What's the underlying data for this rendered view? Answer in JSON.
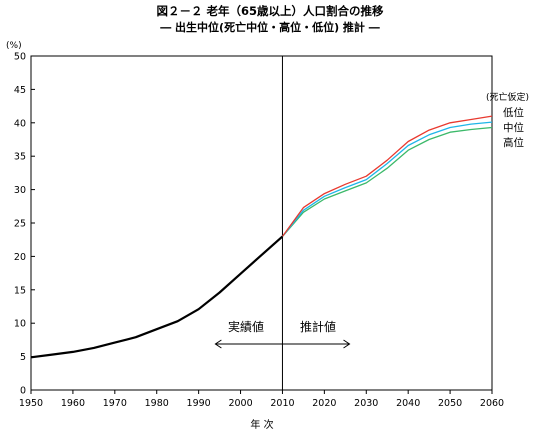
{
  "chart_data": {
    "type": "line",
    "title": "図２－２ 老年（65歳以上）人口割合の推移",
    "subtitle": "― 出生中位(死亡中位・高位・低位) 推計 ―",
    "xlabel": "年 次",
    "y_unit_label": "(%)",
    "xlim": [
      1950,
      2060
    ],
    "ylim": [
      0,
      50
    ],
    "x_ticks": [
      1950,
      1960,
      1970,
      1980,
      1990,
      2000,
      2010,
      2020,
      2030,
      2040,
      2050,
      2060
    ],
    "y_ticks": [
      0,
      5,
      10,
      15,
      20,
      25,
      30,
      35,
      40,
      45,
      50
    ],
    "grid": false,
    "divider_year": 2010,
    "annotations": {
      "actual_label": "実績値",
      "projected_label": "推計値",
      "arrow_range": [
        1994,
        2026
      ]
    },
    "legend": {
      "header": "(死亡仮定)",
      "placement": "right",
      "labels": [
        "低位",
        "中位",
        "高位"
      ]
    },
    "series": [
      {
        "key": "actual",
        "color": "#000000",
        "x": [
          1950,
          1955,
          1960,
          1965,
          1970,
          1975,
          1980,
          1985,
          1990,
          1995,
          2000,
          2005,
          2010
        ],
        "values": [
          4.9,
          5.3,
          5.7,
          6.3,
          7.1,
          7.9,
          9.1,
          10.3,
          12.1,
          14.6,
          17.4,
          20.2,
          23.0
        ]
      },
      {
        "key": "low",
        "legend_index": 0,
        "color": "#e8392f",
        "x": [
          2010,
          2015,
          2020,
          2025,
          2030,
          2035,
          2040,
          2045,
          2050,
          2055,
          2060
        ],
        "values": [
          23.0,
          27.3,
          29.4,
          30.8,
          32.0,
          34.4,
          37.2,
          38.9,
          40.0,
          40.5,
          41.0
        ]
      },
      {
        "key": "mid",
        "legend_index": 1,
        "color": "#1fb5e8",
        "x": [
          2010,
          2015,
          2020,
          2025,
          2030,
          2035,
          2040,
          2045,
          2050,
          2055,
          2060
        ],
        "values": [
          23.0,
          26.9,
          29.0,
          30.3,
          31.5,
          33.9,
          36.6,
          38.2,
          39.3,
          39.8,
          40.1
        ]
      },
      {
        "key": "high",
        "legend_index": 2,
        "color": "#3cb96a",
        "x": [
          2010,
          2015,
          2020,
          2025,
          2030,
          2035,
          2040,
          2045,
          2050,
          2055,
          2060
        ],
        "values": [
          23.0,
          26.6,
          28.6,
          29.8,
          31.0,
          33.2,
          35.9,
          37.5,
          38.6,
          39.0,
          39.3
        ]
      }
    ]
  }
}
